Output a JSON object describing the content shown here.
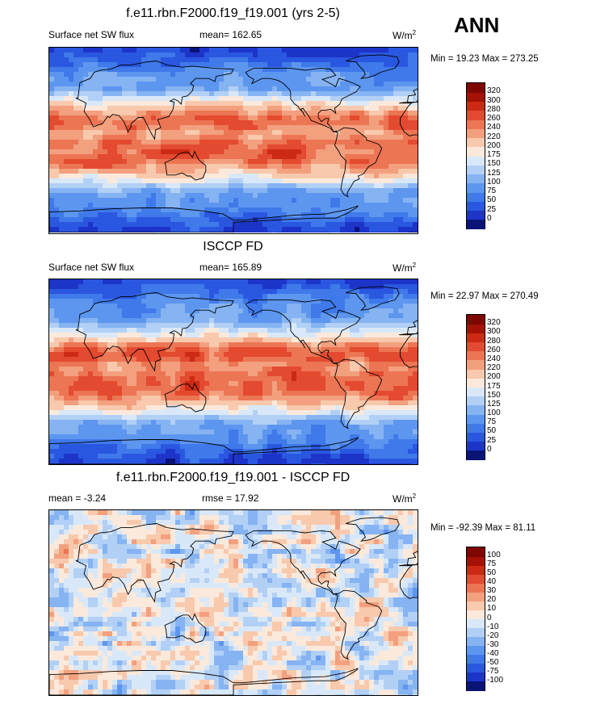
{
  "header": {
    "season_label": "ANN"
  },
  "panels": [
    {
      "title": "f.e11.rbn.F2000.f19_f19.001 (yrs 2-5)",
      "left_label": "Surface net SW flux",
      "center_label": "mean= 162.65",
      "units": "W/m",
      "units_sup": "2",
      "minmax": "Min =  19.23 Max = 273.25"
    },
    {
      "title": "ISCCP FD",
      "left_label": "Surface net SW flux",
      "center_label": "mean= 165.89",
      "units": "W/m",
      "units_sup": "2",
      "minmax": "Min =  22.97 Max = 270.49"
    },
    {
      "title": "f.e11.rbn.F2000.f19_f19.001 - ISCCP FD",
      "left_label": "mean =  -3.24",
      "center_label": "rmse =  17.92",
      "units": "W/m",
      "units_sup": "2",
      "minmax": "Min = -92.39 Max =  81.11"
    }
  ],
  "chart_data": [
    {
      "type": "heatmap",
      "title": "f.e11.rbn.F2000.f19_f19.001 (yrs 2-5)",
      "variable": "Surface net SW flux",
      "units": "W/m2",
      "mean": 162.65,
      "min": 19.23,
      "max": 273.25,
      "colorbar_levels": [
        0,
        25,
        50,
        75,
        100,
        125,
        150,
        175,
        200,
        220,
        240,
        260,
        280,
        300,
        320
      ],
      "colorbar_colors": [
        "#0a1477",
        "#1d34c9",
        "#2a57e0",
        "#3f79ea",
        "#5d96ef",
        "#86b3f2",
        "#b2d0f5",
        "#d9e8f8",
        "#fbe9dc",
        "#f8c9ad",
        "#f3a07f",
        "#ec7554",
        "#e34a2f",
        "#cc2a13",
        "#a61106",
        "#7e0702"
      ]
    },
    {
      "type": "heatmap",
      "title": "ISCCP FD",
      "variable": "Surface net SW flux",
      "units": "W/m2",
      "mean": 165.89,
      "min": 22.97,
      "max": 270.49,
      "colorbar_levels": [
        0,
        25,
        50,
        75,
        100,
        125,
        150,
        175,
        200,
        220,
        240,
        260,
        280,
        300,
        320
      ],
      "colorbar_colors": [
        "#0a1477",
        "#1d34c9",
        "#2a57e0",
        "#3f79ea",
        "#5d96ef",
        "#86b3f2",
        "#b2d0f5",
        "#d9e8f8",
        "#fbe9dc",
        "#f8c9ad",
        "#f3a07f",
        "#ec7554",
        "#e34a2f",
        "#cc2a13",
        "#a61106",
        "#7e0702"
      ]
    },
    {
      "type": "heatmap",
      "title": "f.e11.rbn.F2000.f19_f19.001 - ISCCP FD",
      "units": "W/m2",
      "mean": -3.24,
      "rmse": 17.92,
      "min": -92.39,
      "max": 81.11,
      "colorbar_levels": [
        -100,
        -75,
        -50,
        -40,
        -30,
        -20,
        -10,
        0,
        10,
        20,
        30,
        40,
        50,
        75,
        100
      ],
      "colorbar_colors": [
        "#0a1477",
        "#1d34c9",
        "#2a57e0",
        "#3f79ea",
        "#5d96ef",
        "#86b3f2",
        "#b2d0f5",
        "#d9e8f8",
        "#fbe9dc",
        "#f8c9ad",
        "#f3a07f",
        "#ec7554",
        "#e34a2f",
        "#cc2a13",
        "#a61106",
        "#7e0702"
      ]
    }
  ]
}
